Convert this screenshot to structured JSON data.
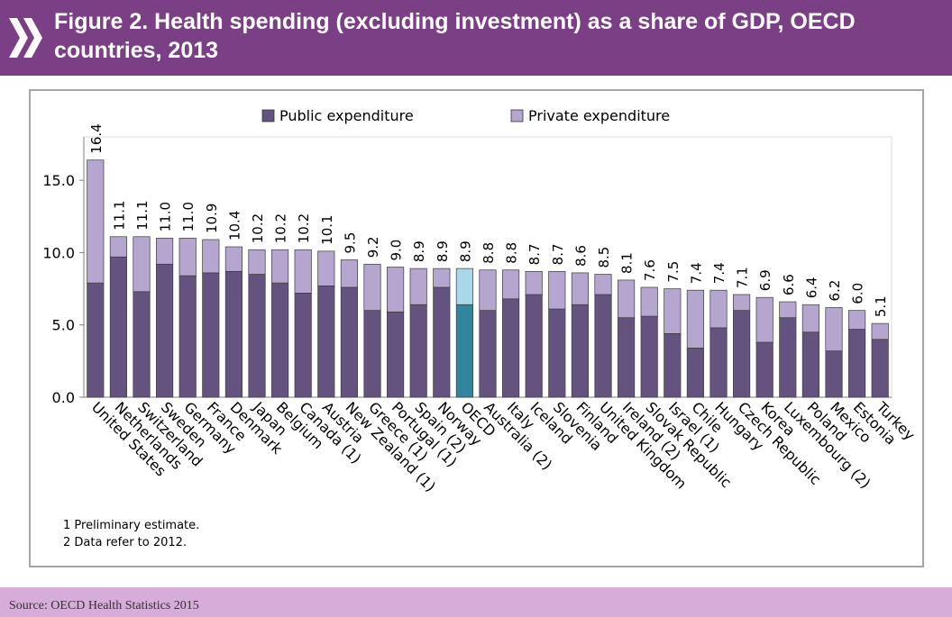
{
  "header": {
    "title": "Figure 2.  Health spending (excluding investment) as a share of GDP, OECD countries, 2013"
  },
  "colors": {
    "header_bg": "#7b3f86",
    "public": "#65537f",
    "private": "#b4a6cf",
    "oecd_public": "#31859c",
    "oecd_private": "#a9d8e8",
    "footer_bg": "#d6acd8"
  },
  "chart_data": {
    "type": "bar",
    "stacked": true,
    "title": "",
    "xlabel": "",
    "ylabel": "",
    "ylim": [
      0,
      18
    ],
    "yticks": [
      "0.0",
      "5.0",
      "10.0",
      "15.0"
    ],
    "grid": false,
    "legend": "top",
    "categories": [
      "United States",
      "Netherlands",
      "Switzerland",
      "Sweden",
      "Germany",
      "France",
      "Denmark",
      "Japan",
      "Belgium",
      "Canada (1)",
      "Austria",
      "New Zealand (1)",
      "Greece (1)",
      "Portugal (1)",
      "Spain (2)",
      "Norway",
      "OECD",
      "Australia (2)",
      "Italy",
      "Iceland",
      "Slovenia",
      "Finland",
      "United Kingdom",
      "Ireland (2)",
      "Slovak Republic",
      "Israel (1)",
      "Chile",
      "Hungary",
      "Czech Republic",
      "Korea",
      "Luxembourg (2)",
      "Poland",
      "Mexico",
      "Estonia",
      "Turkey"
    ],
    "series": [
      {
        "name": "Public expenditure",
        "values": [
          7.9,
          9.7,
          7.3,
          9.2,
          8.4,
          8.6,
          8.7,
          8.5,
          7.9,
          7.2,
          7.7,
          7.6,
          6.0,
          5.9,
          6.4,
          7.6,
          6.4,
          6.0,
          6.8,
          7.1,
          6.1,
          6.4,
          7.1,
          5.5,
          5.6,
          4.4,
          3.4,
          4.8,
          6.0,
          3.8,
          5.5,
          4.5,
          3.2,
          4.7,
          4.0
        ]
      },
      {
        "name": "Private expenditure",
        "values": [
          8.5,
          1.4,
          3.8,
          1.8,
          2.6,
          2.3,
          1.7,
          1.7,
          2.3,
          3.0,
          2.4,
          1.9,
          3.2,
          3.1,
          2.5,
          1.3,
          2.5,
          2.8,
          2.0,
          1.6,
          2.6,
          2.2,
          1.4,
          2.6,
          2.0,
          3.1,
          4.0,
          2.6,
          1.1,
          3.1,
          1.1,
          1.9,
          3.0,
          1.3,
          1.1
        ]
      }
    ],
    "totals": [
      "16.4",
      "11.1",
      "11.1",
      "11.0",
      "11.0",
      "10.9",
      "10.4",
      "10.2",
      "10.2",
      "10.2",
      "10.1",
      "9.5",
      "9.2",
      "9.0",
      "8.9",
      "8.9",
      "8.9",
      "8.8",
      "8.8",
      "8.7",
      "8.7",
      "8.6",
      "8.5",
      "8.1",
      "7.6",
      "7.5",
      "7.4",
      "7.4",
      "7.1",
      "6.9",
      "6.6",
      "6.4",
      "6.2",
      "6.0",
      "5.1"
    ],
    "highlight": "OECD"
  },
  "notes": {
    "note1": "1 Preliminary estimate.",
    "note2": "2 Data refer to 2012."
  },
  "footer": {
    "source": "Source: OECD Health Statistics 2015"
  }
}
